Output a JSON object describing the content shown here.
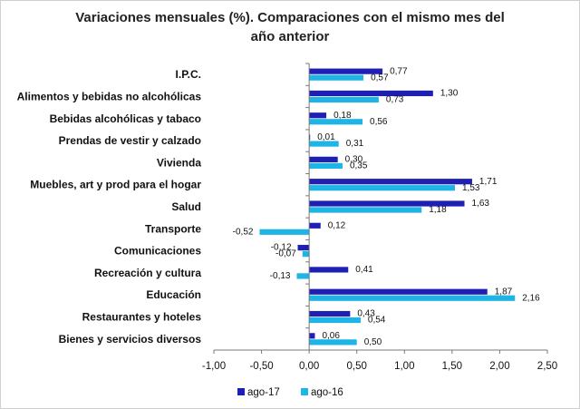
{
  "chart_data": {
    "type": "bar",
    "orientation": "horizontal",
    "title": "Variaciones mensuales (%). Comparaciones con el mismo mes del año anterior",
    "title_lines": [
      "Variaciones mensuales (%). Comparaciones con el mismo mes del",
      "año anterior"
    ],
    "categories": [
      "I.P.C.",
      "Alimentos y bebidas no alcohólicas",
      "Bebidas alcohólicas y tabaco",
      "Prendas de vestir y calzado",
      "Vivienda",
      "Muebles, art y prod para el hogar",
      "Salud",
      "Transporte",
      "Comunicaciones",
      "Recreación y cultura",
      "Educación",
      "Restaurantes y hoteles",
      "Bienes y servicios diversos"
    ],
    "series": [
      {
        "name": "ago-17",
        "color": "#1f1fb4",
        "values": [
          0.77,
          1.3,
          0.18,
          0.01,
          0.3,
          1.71,
          1.63,
          0.12,
          -0.12,
          0.41,
          1.87,
          0.43,
          0.06
        ],
        "labels": [
          "0,77",
          "1,30",
          "0,18",
          "0,01",
          "0,30",
          "1,71",
          "1,63",
          "0,12",
          "-0,12",
          "0,41",
          "1,87",
          "0,43",
          "0,06"
        ]
      },
      {
        "name": "ago-16",
        "color": "#1fb4e6",
        "values": [
          0.57,
          0.73,
          0.56,
          0.31,
          0.35,
          1.53,
          1.18,
          -0.52,
          -0.07,
          -0.13,
          2.16,
          0.54,
          0.5
        ],
        "labels": [
          "0,57",
          "0,73",
          "0,56",
          "0,31",
          "0,35",
          "1,53",
          "1,18",
          "-0,52",
          "-0,07",
          "-0,13",
          "2,16",
          "0,54",
          "0,50"
        ]
      }
    ],
    "xlim": [
      -1.0,
      2.5
    ],
    "xticks": [
      -1.0,
      -0.5,
      0.0,
      0.5,
      1.0,
      1.5,
      2.0,
      2.5
    ],
    "xtick_labels": [
      "-1,00",
      "-0,50",
      "0,00",
      "0,50",
      "1,00",
      "1,50",
      "2,00",
      "2,50"
    ],
    "xlabel": "",
    "ylabel": "",
    "grid": false,
    "legend": "bottom-center"
  }
}
